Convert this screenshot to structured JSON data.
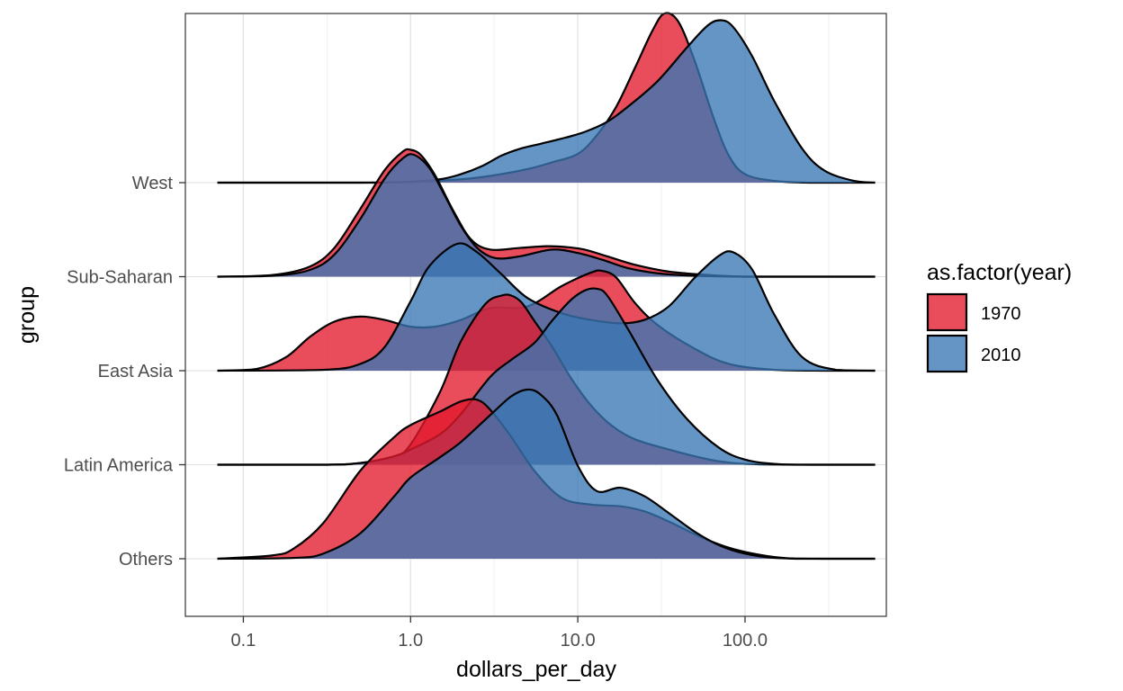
{
  "chart_data": {
    "type": "ridgeline",
    "xlabel": "dollars_per_day",
    "ylabel": "group",
    "x_scale": "log10",
    "x_ticks": [
      0.1,
      1.0,
      10.0,
      100.0
    ],
    "x_tick_labels": [
      "0.1",
      "1.0",
      "10.0",
      "100.0"
    ],
    "xlim": [
      0.045,
      700
    ],
    "x_grid_range": [
      0.07,
      600
    ],
    "grid": true,
    "legend": {
      "title": "as.factor(year)",
      "position": "right",
      "entries": [
        {
          "label": "1970",
          "color": "#e31a2c"
        },
        {
          "label": "2010",
          "color": "#3a77b5"
        }
      ]
    },
    "fill_opacity": 0.78,
    "groups": [
      "Others",
      "Latin America",
      "East Asia",
      "Sub-Saharan",
      "West"
    ],
    "series": [
      {
        "name": "1970",
        "color": "#e31a2c",
        "densities": {
          "West": {
            "x": [
              0.07,
              0.5,
              1,
              2,
              3,
              5,
              7,
              10,
              13,
              17,
              22,
              28,
              33,
              40,
              50,
              65,
              80,
              100,
              150,
              250,
              400,
              600
            ],
            "h": [
              0,
              0,
              0.005,
              0.02,
              0.04,
              0.08,
              0.12,
              0.17,
              0.28,
              0.45,
              0.68,
              0.9,
              1.0,
              0.95,
              0.72,
              0.38,
              0.16,
              0.05,
              0.01,
              0,
              0,
              0
            ]
          },
          "Sub-Saharan": {
            "x": [
              0.07,
              0.15,
              0.25,
              0.35,
              0.5,
              0.7,
              0.9,
              1.0,
              1.15,
              1.4,
              1.8,
              2.3,
              3.0,
              4.5,
              6.5,
              8.5,
              11,
              15,
              22,
              35,
              60,
              100,
              200,
              600
            ],
            "h": [
              0,
              0.01,
              0.06,
              0.17,
              0.4,
              0.63,
              0.74,
              0.75,
              0.72,
              0.6,
              0.39,
              0.22,
              0.16,
              0.17,
              0.18,
              0.175,
              0.16,
              0.12,
              0.07,
              0.03,
              0.01,
              0,
              0,
              0
            ]
          },
          "East Asia": {
            "x": [
              0.07,
              0.12,
              0.18,
              0.25,
              0.35,
              0.5,
              0.7,
              1.0,
              1.4,
              2.0,
              3.0,
              5.0,
              8.0,
              12,
              14,
              17,
              22,
              30,
              50,
              80,
              150,
              300,
              600
            ],
            "h": [
              0,
              0.01,
              0.08,
              0.2,
              0.29,
              0.32,
              0.3,
              0.26,
              0.26,
              0.3,
              0.37,
              0.38,
              0.5,
              0.58,
              0.59,
              0.55,
              0.4,
              0.27,
              0.13,
              0.04,
              0.005,
              0,
              0
            ]
          },
          "Latin America": {
            "x": [
              0.07,
              0.3,
              0.5,
              0.8,
              1.0,
              1.5,
              2.0,
              2.8,
              3.5,
              4.0,
              4.6,
              5.5,
              7,
              9,
              12,
              16,
              22,
              35,
              50,
              70,
              100,
              200,
              600
            ],
            "h": [
              0,
              0,
              0.01,
              0.05,
              0.12,
              0.43,
              0.73,
              0.95,
              1.0,
              1.0,
              0.96,
              0.85,
              0.7,
              0.52,
              0.35,
              0.23,
              0.15,
              0.09,
              0.05,
              0.02,
              0.005,
              0,
              0
            ]
          },
          "Others": {
            "x": [
              0.07,
              0.15,
              0.2,
              0.3,
              0.5,
              0.8,
              1.0,
              1.5,
              2.0,
              2.5,
              3.0,
              4.0,
              5.5,
              8,
              12,
              18,
              25,
              35,
              60,
              100,
              200,
              600
            ],
            "h": [
              0,
              0.02,
              0.06,
              0.21,
              0.52,
              0.72,
              0.79,
              0.87,
              0.93,
              0.94,
              0.88,
              0.72,
              0.52,
              0.36,
              0.32,
              0.31,
              0.28,
              0.22,
              0.11,
              0.04,
              0,
              0
            ]
          }
        }
      },
      {
        "name": "2010",
        "color": "#3a77b5",
        "densities": {
          "West": {
            "x": [
              0.07,
              0.3,
              0.6,
              1.0,
              1.5,
              2.0,
              2.7,
              3.5,
              4.5,
              6,
              8,
              11,
              15,
              20,
              30,
              45,
              60,
              72,
              85,
              110,
              150,
              220,
              300,
              450,
              600
            ],
            "h": [
              0,
              0,
              0,
              0.005,
              0.02,
              0.05,
              0.1,
              0.16,
              0.2,
              0.23,
              0.26,
              0.3,
              0.36,
              0.45,
              0.6,
              0.8,
              0.93,
              0.96,
              0.92,
              0.75,
              0.48,
              0.2,
              0.07,
              0.01,
              0
            ]
          },
          "Sub-Saharan": {
            "x": [
              0.07,
              0.15,
              0.25,
              0.35,
              0.5,
              0.7,
              0.9,
              1.05,
              1.3,
              1.6,
              2.0,
              2.5,
              3.2,
              4.5,
              7,
              10,
              14,
              20,
              30,
              50,
              100,
              200,
              600
            ],
            "h": [
              0,
              0.005,
              0.04,
              0.13,
              0.34,
              0.58,
              0.7,
              0.72,
              0.64,
              0.48,
              0.3,
              0.17,
              0.11,
              0.12,
              0.16,
              0.14,
              0.1,
              0.05,
              0.02,
              0.005,
              0,
              0,
              0
            ]
          },
          "East Asia": {
            "x": [
              0.07,
              0.3,
              0.5,
              0.7,
              1.0,
              1.3,
              1.9,
              2.5,
              3.5,
              5,
              8,
              12,
              18,
              25,
              35,
              50,
              70,
              85,
              110,
              150,
              220,
              350,
              600
            ],
            "h": [
              0,
              0.005,
              0.04,
              0.14,
              0.41,
              0.62,
              0.75,
              0.7,
              0.57,
              0.43,
              0.34,
              0.3,
              0.28,
              0.3,
              0.38,
              0.55,
              0.68,
              0.7,
              0.6,
              0.33,
              0.08,
              0.005,
              0
            ]
          },
          "Latin America": {
            "x": [
              0.07,
              0.3,
              0.5,
              0.8,
              1.0,
              1.5,
              2.0,
              3.0,
              4.0,
              5.5,
              7,
              9,
              11,
              13,
              15,
              20,
              30,
              45,
              70,
              100,
              150,
              250,
              600
            ],
            "h": [
              0,
              0,
              0.01,
              0.05,
              0.09,
              0.18,
              0.3,
              0.52,
              0.62,
              0.72,
              0.85,
              0.97,
              1.03,
              1.04,
              1.0,
              0.8,
              0.5,
              0.27,
              0.1,
              0.03,
              0.005,
              0,
              0
            ]
          },
          "Others": {
            "x": [
              0.07,
              0.2,
              0.3,
              0.5,
              0.8,
              1.0,
              1.5,
              2.0,
              3.0,
              4.0,
              5.0,
              6.0,
              7.5,
              10,
              13,
              18,
              25,
              35,
              50,
              70,
              100,
              150,
              300,
              600
            ],
            "h": [
              0,
              0.005,
              0.03,
              0.15,
              0.37,
              0.48,
              0.6,
              0.69,
              0.85,
              0.96,
              1.0,
              0.97,
              0.85,
              0.55,
              0.4,
              0.42,
              0.37,
              0.27,
              0.16,
              0.08,
              0.03,
              0.005,
              0,
              0
            ]
          }
        }
      }
    ]
  }
}
